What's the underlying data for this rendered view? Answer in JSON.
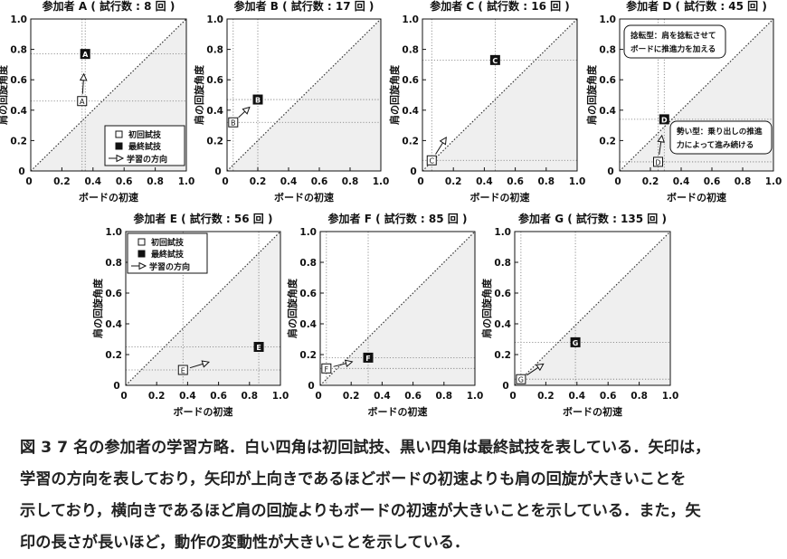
{
  "chart_data": [
    {
      "type": "scatter",
      "title": "参加者 A ( 試行数 : 8 回 )",
      "xlabel": "ボードの初速",
      "ylabel": "肩の回旋角度",
      "xlim": [
        0,
        1.0
      ],
      "ylim": [
        0,
        1.0
      ],
      "xticks": [
        "0",
        "0.2",
        "0.4",
        "0.6",
        "0.8",
        "1.0"
      ],
      "yticks": [
        "0",
        "0.2",
        "0.4",
        "0.6",
        "0.8",
        "1.0"
      ],
      "first_trial": {
        "label": "A",
        "x": 0.33,
        "y": 0.46
      },
      "final_trial": {
        "label": "A",
        "x": 0.35,
        "y": 0.77
      },
      "legend": {
        "first": "初回試技",
        "final": "最終試技",
        "arrow": "学習の方向",
        "position": "bottom-right"
      }
    },
    {
      "type": "scatter",
      "title": "参加者 B ( 試行数 : 17 回 )",
      "xlabel": "ボードの初速",
      "ylabel": "肩の回旋角度",
      "xlim": [
        0,
        1.0
      ],
      "ylim": [
        0,
        1.0
      ],
      "xticks": [
        "0",
        "0.2",
        "0.4",
        "0.6",
        "0.8",
        "1.0"
      ],
      "yticks": [
        "0",
        "0.2",
        "0.4",
        "0.6",
        "0.8",
        "1.0"
      ],
      "first_trial": {
        "label": "B",
        "x": 0.04,
        "y": 0.32
      },
      "final_trial": {
        "label": "B",
        "x": 0.2,
        "y": 0.47
      }
    },
    {
      "type": "scatter",
      "title": "参加者 C ( 試行数 : 16 回 )",
      "xlabel": "ボードの初速",
      "ylabel": "肩の回旋角度",
      "xlim": [
        0,
        1.0
      ],
      "ylim": [
        0,
        1.0
      ],
      "xticks": [
        "0",
        "0.2",
        "0.4",
        "0.6",
        "0.8",
        "1.0"
      ],
      "yticks": [
        "0",
        "0.2",
        "0.4",
        "0.6",
        "0.8",
        "1.0"
      ],
      "first_trial": {
        "label": "C",
        "x": 0.06,
        "y": 0.07
      },
      "final_trial": {
        "label": "C",
        "x": 0.47,
        "y": 0.73
      }
    },
    {
      "type": "scatter",
      "title": "参加者 D ( 試行数 : 45 回 )",
      "xlabel": "ボードの初速",
      "ylabel": "肩の回旋角度",
      "xlim": [
        0,
        1.0
      ],
      "ylim": [
        0,
        1.0
      ],
      "xticks": [
        "0",
        "0.2",
        "0.4",
        "0.6",
        "0.8",
        "1.0"
      ],
      "yticks": [
        "0",
        "0.2",
        "0.4",
        "0.6",
        "0.8",
        "1.0"
      ],
      "first_trial": {
        "label": "D",
        "x": 0.25,
        "y": 0.06
      },
      "final_trial": {
        "label": "D",
        "x": 0.29,
        "y": 0.34
      },
      "annotations": [
        {
          "lines": [
            "捻転型：肩を捻転させて",
            "ボードに推進力を加える"
          ],
          "position": "top-left"
        },
        {
          "lines": [
            "勢い型：乗り出しの推進",
            "力によって進み続ける"
          ],
          "position": "bottom-right"
        }
      ]
    },
    {
      "type": "scatter",
      "title": "参加者 E ( 試行数 : 56 回 )",
      "xlabel": "ボードの初速",
      "ylabel": "肩の回旋角度",
      "xlim": [
        0,
        1.0
      ],
      "ylim": [
        0,
        1.0
      ],
      "xticks": [
        "0",
        "0.2",
        "0.4",
        "0.6",
        "0.8",
        "1.0"
      ],
      "yticks": [
        "0",
        "0.2",
        "0.4",
        "0.6",
        "0.8",
        "1.0"
      ],
      "first_trial": {
        "label": "E",
        "x": 0.37,
        "y": 0.1
      },
      "final_trial": {
        "label": "E",
        "x": 0.86,
        "y": 0.25
      },
      "legend": {
        "first": "初回試技",
        "final": "最終試技",
        "arrow": "学習の方向",
        "position": "top-left"
      }
    },
    {
      "type": "scatter",
      "title": "参加者 F ( 試行数 : 85 回 )",
      "xlabel": "ボードの初速",
      "ylabel": "肩の回旋角度",
      "xlim": [
        0,
        1.0
      ],
      "ylim": [
        0,
        1.0
      ],
      "xticks": [
        "0",
        "0.2",
        "0.4",
        "0.6",
        "0.8",
        "1.0"
      ],
      "yticks": [
        "0",
        "0.2",
        "0.4",
        "0.6",
        "0.8",
        "1.0"
      ],
      "first_trial": {
        "label": "F",
        "x": 0.04,
        "y": 0.11
      },
      "final_trial": {
        "label": "F",
        "x": 0.31,
        "y": 0.18
      }
    },
    {
      "type": "scatter",
      "title": "参加者 G ( 試行数 : 135 回 )",
      "xlabel": "ボードの初速",
      "ylabel": "肩の回旋角度",
      "xlim": [
        0,
        1.0
      ],
      "ylim": [
        0,
        1.0
      ],
      "xticks": [
        "0",
        "0.2",
        "0.4",
        "0.6",
        "0.8",
        "1.0"
      ],
      "yticks": [
        "0",
        "0.2",
        "0.4",
        "0.6",
        "0.8",
        "1.0"
      ],
      "first_trial": {
        "label": "G",
        "x": 0.04,
        "y": 0.04
      },
      "final_trial": {
        "label": "G",
        "x": 0.39,
        "y": 0.28
      }
    }
  ],
  "caption": [
    "図 3  7 名の参加者の学習方略．白い四角は初回試技、黒い四角は最終試技を表している．矢印は，",
    "学習の方向を表しており，矢印が上向きであるほどボードの初速よりも肩の回旋が大きいことを",
    "示しており，横向きであるほど肩の回旋よりもボードの初速が大きいことを示している．また，矢",
    "印の長さが長いほど，動作の変動性が大きいことを示している．"
  ],
  "colors": {
    "shade": "#efefef",
    "ink": "#111111",
    "guide": "#777777"
  }
}
